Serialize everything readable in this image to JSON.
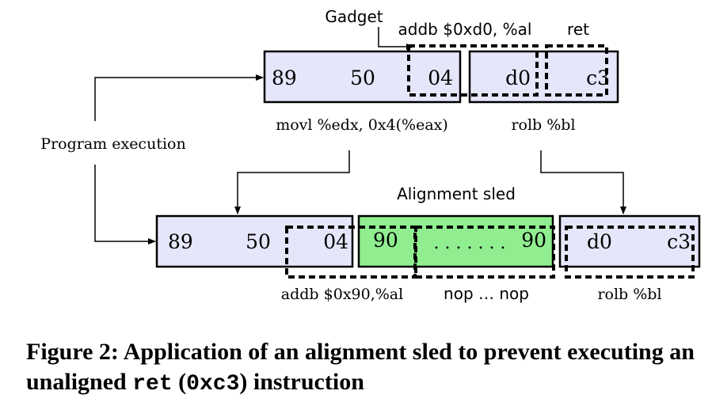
{
  "diagram": {
    "gadget_label": "Gadget",
    "program_execution_label": "Program execution",
    "top_row": {
      "instr_addb": "addb $0xd0, %al",
      "instr_ret": "ret",
      "block1_bytes": [
        "89",
        "50",
        "04"
      ],
      "block2_bytes": [
        "d0",
        "c3"
      ],
      "instr_movl": "movl %edx, 0x4(%eax)",
      "instr_rolb": "rolb %bl"
    },
    "bottom_row": {
      "sled_title": "Alignment sled",
      "block1_bytes": [
        "89",
        "50",
        "04"
      ],
      "sled_bytes": [
        "90",
        ". . . . . . .",
        "90"
      ],
      "block3_bytes": [
        "d0",
        "c3"
      ],
      "instr_addb": "addb $0x90,%al",
      "instr_nops": "nop … nop",
      "instr_rolb": "rolb %bl"
    },
    "colors": {
      "block_fill": "#e6e6fa",
      "sled_fill": "#90ee90",
      "stroke": "#000000"
    }
  },
  "caption": {
    "part1": "Figure 2: Application of an alignment sled to prevent executing an unaligned ",
    "code1": "ret",
    "part2": " (",
    "code2": "0xc3",
    "part3": ") instruction"
  }
}
